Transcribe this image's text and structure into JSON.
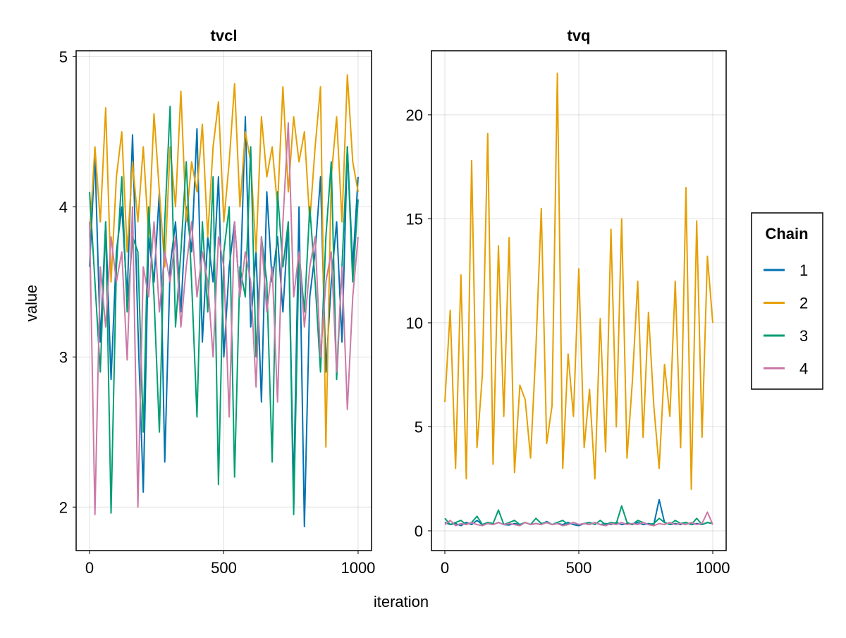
{
  "chart_data": [
    {
      "type": "line",
      "title": "tvcl",
      "xlabel": "",
      "ylabel": "value",
      "xlim": [
        -50,
        1050
      ],
      "ylim": [
        1.71,
        5.04
      ],
      "xticks": [
        0,
        500,
        1000
      ],
      "yticks": [
        2,
        3,
        4,
        5
      ],
      "grid": true,
      "x": [
        0,
        20,
        40,
        60,
        80,
        100,
        120,
        140,
        160,
        180,
        200,
        220,
        240,
        260,
        280,
        300,
        320,
        340,
        360,
        380,
        400,
        420,
        440,
        460,
        480,
        500,
        520,
        540,
        560,
        580,
        600,
        620,
        640,
        660,
        680,
        700,
        720,
        740,
        760,
        780,
        800,
        820,
        840,
        860,
        880,
        900,
        920,
        940,
        960,
        980,
        1000
      ],
      "series": [
        {
          "name": "1",
          "color": "#0072b2",
          "values": [
            3.6,
            4.35,
            3.1,
            3.9,
            2.85,
            3.7,
            4.0,
            3.4,
            4.48,
            3.2,
            2.1,
            3.8,
            3.5,
            4.1,
            2.3,
            3.6,
            3.9,
            3.3,
            4.0,
            3.7,
            4.52,
            3.1,
            3.8,
            3.5,
            4.2,
            3.0,
            3.6,
            3.9,
            3.4,
            4.6,
            3.2,
            3.7,
            2.7,
            4.1,
            3.5,
            3.8,
            3.3,
            3.9,
            2.1,
            4.0,
            1.87,
            3.4,
            3.7,
            4.2,
            2.9,
            3.5,
            3.9,
            3.1,
            4.4,
            3.6,
            4.2
          ]
        },
        {
          "name": "2",
          "color": "#e69f00",
          "values": [
            3.8,
            4.4,
            3.9,
            4.66,
            3.5,
            4.2,
            4.5,
            3.7,
            4.3,
            3.9,
            4.4,
            3.8,
            4.62,
            4.1,
            3.6,
            4.4,
            4.0,
            4.77,
            3.9,
            4.3,
            4.1,
            4.55,
            3.8,
            4.4,
            4.7,
            3.9,
            4.3,
            4.82,
            4.0,
            4.5,
            4.3,
            3.7,
            4.6,
            4.2,
            4.4,
            4.0,
            4.8,
            4.1,
            4.6,
            4.3,
            4.5,
            3.9,
            4.4,
            4.8,
            2.4,
            4.2,
            4.6,
            3.9,
            4.88,
            4.3,
            4.1
          ]
        },
        {
          "name": "3",
          "color": "#009e73",
          "values": [
            4.1,
            3.5,
            2.9,
            3.9,
            1.96,
            3.6,
            4.2,
            3.3,
            3.8,
            3.7,
            2.5,
            4.0,
            3.4,
            2.5,
            3.9,
            4.67,
            3.2,
            3.7,
            4.3,
            3.5,
            2.6,
            3.9,
            3.3,
            4.2,
            2.15,
            3.7,
            4.0,
            2.2,
            3.6,
            3.4,
            4.4,
            3.0,
            3.8,
            3.5,
            2.3,
            4.1,
            3.6,
            3.9,
            1.95,
            3.7,
            3.3,
            4.0,
            3.5,
            2.9,
            3.8,
            4.3,
            2.85,
            3.6,
            4.4,
            3.5,
            4.05
          ]
        },
        {
          "name": "4",
          "color": "#cc79a7",
          "values": [
            3.9,
            1.95,
            3.6,
            3.2,
            3.8,
            3.5,
            3.7,
            2.98,
            4.0,
            2.0,
            3.6,
            3.4,
            3.9,
            3.3,
            3.7,
            3.5,
            3.8,
            3.2,
            3.6,
            3.9,
            3.4,
            3.7,
            3.5,
            3.0,
            3.8,
            3.6,
            2.6,
            3.9,
            3.4,
            3.7,
            3.5,
            2.8,
            3.8,
            3.3,
            3.6,
            2.7,
            3.9,
            4.56,
            3.4,
            3.7,
            3.2,
            3.6,
            3.8,
            3.0,
            3.5,
            3.7,
            2.9,
            3.6,
            2.65,
            3.4,
            3.8
          ]
        }
      ]
    },
    {
      "type": "line",
      "title": "tvq",
      "xlabel": "",
      "ylabel": "",
      "xlim": [
        -50,
        1050
      ],
      "ylim": [
        -0.95,
        23.08
      ],
      "xticks": [
        0,
        500,
        1000
      ],
      "yticks": [
        0,
        5,
        10,
        15,
        20
      ],
      "grid": true,
      "x": [
        0,
        20,
        40,
        60,
        80,
        100,
        120,
        140,
        160,
        180,
        200,
        220,
        240,
        260,
        280,
        300,
        320,
        340,
        360,
        380,
        400,
        420,
        440,
        460,
        480,
        500,
        520,
        540,
        560,
        580,
        600,
        620,
        640,
        660,
        680,
        700,
        720,
        740,
        760,
        780,
        800,
        820,
        840,
        860,
        880,
        900,
        920,
        940,
        960,
        980,
        1000
      ],
      "series": [
        {
          "name": "1",
          "color": "#0072b2",
          "values": [
            0.4,
            0.3,
            0.35,
            0.25,
            0.4,
            0.3,
            0.5,
            0.3,
            0.35,
            0.3,
            0.4,
            0.3,
            0.28,
            0.35,
            0.3,
            0.4,
            0.3,
            0.35,
            0.3,
            0.45,
            0.3,
            0.35,
            0.3,
            0.4,
            0.3,
            0.25,
            0.35,
            0.3,
            0.4,
            0.3,
            0.35,
            0.3,
            0.4,
            0.3,
            0.35,
            0.3,
            0.4,
            0.3,
            0.35,
            0.3,
            1.5,
            0.4,
            0.3,
            0.35,
            0.3,
            0.4,
            0.3,
            0.35,
            0.3,
            0.4,
            0.35
          ]
        },
        {
          "name": "2",
          "color": "#e69f00",
          "values": [
            6.2,
            10.6,
            3.0,
            12.3,
            2.5,
            17.8,
            4.0,
            7.5,
            19.1,
            3.2,
            13.7,
            5.5,
            14.1,
            2.8,
            7.0,
            6.3,
            3.5,
            8.8,
            15.5,
            4.2,
            6.0,
            22.0,
            3.0,
            8.5,
            5.5,
            12.6,
            4.0,
            6.8,
            2.5,
            10.2,
            3.8,
            14.5,
            5.0,
            15.0,
            3.5,
            7.2,
            12.0,
            4.5,
            10.5,
            6.0,
            3.0,
            8.0,
            5.5,
            12.0,
            4.0,
            16.5,
            2.0,
            14.9,
            4.5,
            13.2,
            10.0
          ]
        },
        {
          "name": "3",
          "color": "#009e73",
          "values": [
            0.6,
            0.3,
            0.4,
            0.5,
            0.3,
            0.4,
            0.7,
            0.3,
            0.4,
            0.35,
            1.0,
            0.3,
            0.4,
            0.5,
            0.3,
            0.4,
            0.3,
            0.6,
            0.35,
            0.4,
            0.3,
            0.4,
            0.5,
            0.3,
            0.4,
            0.3,
            0.35,
            0.4,
            0.3,
            0.5,
            0.3,
            0.4,
            0.35,
            1.2,
            0.4,
            0.3,
            0.5,
            0.4,
            0.3,
            0.35,
            0.6,
            0.4,
            0.3,
            0.5,
            0.35,
            0.4,
            0.3,
            0.6,
            0.3,
            0.4,
            0.35
          ]
        },
        {
          "name": "4",
          "color": "#cc79a7",
          "values": [
            0.3,
            0.5,
            0.25,
            0.35,
            0.3,
            0.4,
            0.3,
            0.25,
            0.35,
            0.3,
            0.4,
            0.3,
            0.35,
            0.3,
            0.25,
            0.4,
            0.3,
            0.35,
            0.3,
            0.4,
            0.3,
            0.35,
            0.25,
            0.3,
            0.4,
            0.3,
            0.35,
            0.3,
            0.4,
            0.3,
            0.25,
            0.35,
            0.3,
            0.4,
            0.3,
            0.35,
            0.3,
            0.4,
            0.3,
            0.25,
            0.35,
            0.3,
            0.4,
            0.3,
            0.35,
            0.3,
            0.4,
            0.3,
            0.35,
            0.9,
            0.3
          ]
        }
      ]
    }
  ],
  "shared_xlabel": "iteration",
  "legend": {
    "title": "Chain",
    "placement": "right",
    "entries": [
      {
        "label": "1",
        "color": "#0072b2"
      },
      {
        "label": "2",
        "color": "#e69f00"
      },
      {
        "label": "3",
        "color": "#009e73"
      },
      {
        "label": "4",
        "color": "#cc79a7"
      }
    ]
  }
}
